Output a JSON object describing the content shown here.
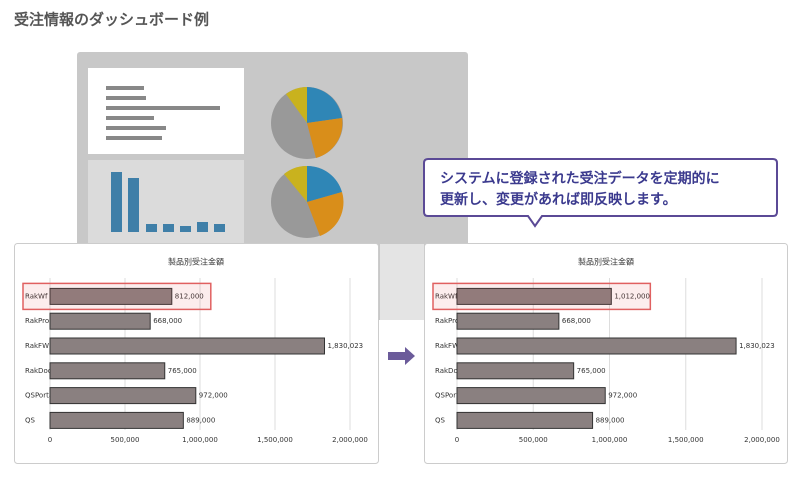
{
  "title": "受注情報のダッシュボード例",
  "callout": [
    "システムに登録された受注データを定期的に",
    "更新し、変更があれば即反映します。"
  ],
  "chart_data": [
    {
      "type": "bar",
      "orientation": "horizontal",
      "title": "製品別受注金額",
      "categories": [
        "RakWf",
        "RakProc",
        "RakFW",
        "RakDoc",
        "QSPortal",
        "QS"
      ],
      "values": [
        812000,
        668000,
        1830023,
        765000,
        972000,
        889000
      ],
      "value_labels": [
        "812,000",
        "668,000",
        "1,830,023",
        "765,000",
        "972,000",
        "889,000"
      ],
      "color": "#8a8080",
      "xlim": [
        0,
        2100000
      ],
      "xticks": [
        0,
        {
          "value": 500000,
          "label": "500,000"
        },
        {
          "value": 1000000,
          "label": "1,000,000"
        },
        {
          "value": 1500000,
          "label": "1,500,000"
        },
        {
          "value": 2000000,
          "label": "2,000,000"
        }
      ],
      "grid": true,
      "highlight": 0
    },
    {
      "type": "bar",
      "orientation": "horizontal",
      "title": "製品別受注金額",
      "categories": [
        "RakWf",
        "RakProc",
        "RakFW",
        "RakDoc",
        "QSPortal",
        "QS"
      ],
      "values": [
        1012000,
        668000,
        1830023,
        765000,
        972000,
        889000
      ],
      "value_labels": [
        "1,012,000",
        "668,000",
        "1,830,023",
        "765,000",
        "972,000",
        "889,000"
      ],
      "color": "#8a8080",
      "xlim": [
        0,
        2100000
      ],
      "xticks": [
        0,
        {
          "value": 500000,
          "label": "500,000"
        },
        {
          "value": 1000000,
          "label": "1,000,000"
        },
        {
          "value": 1500000,
          "label": "1,500,000"
        },
        {
          "value": 2000000,
          "label": "2,000,000"
        }
      ],
      "grid": true,
      "highlight": 0
    }
  ]
}
